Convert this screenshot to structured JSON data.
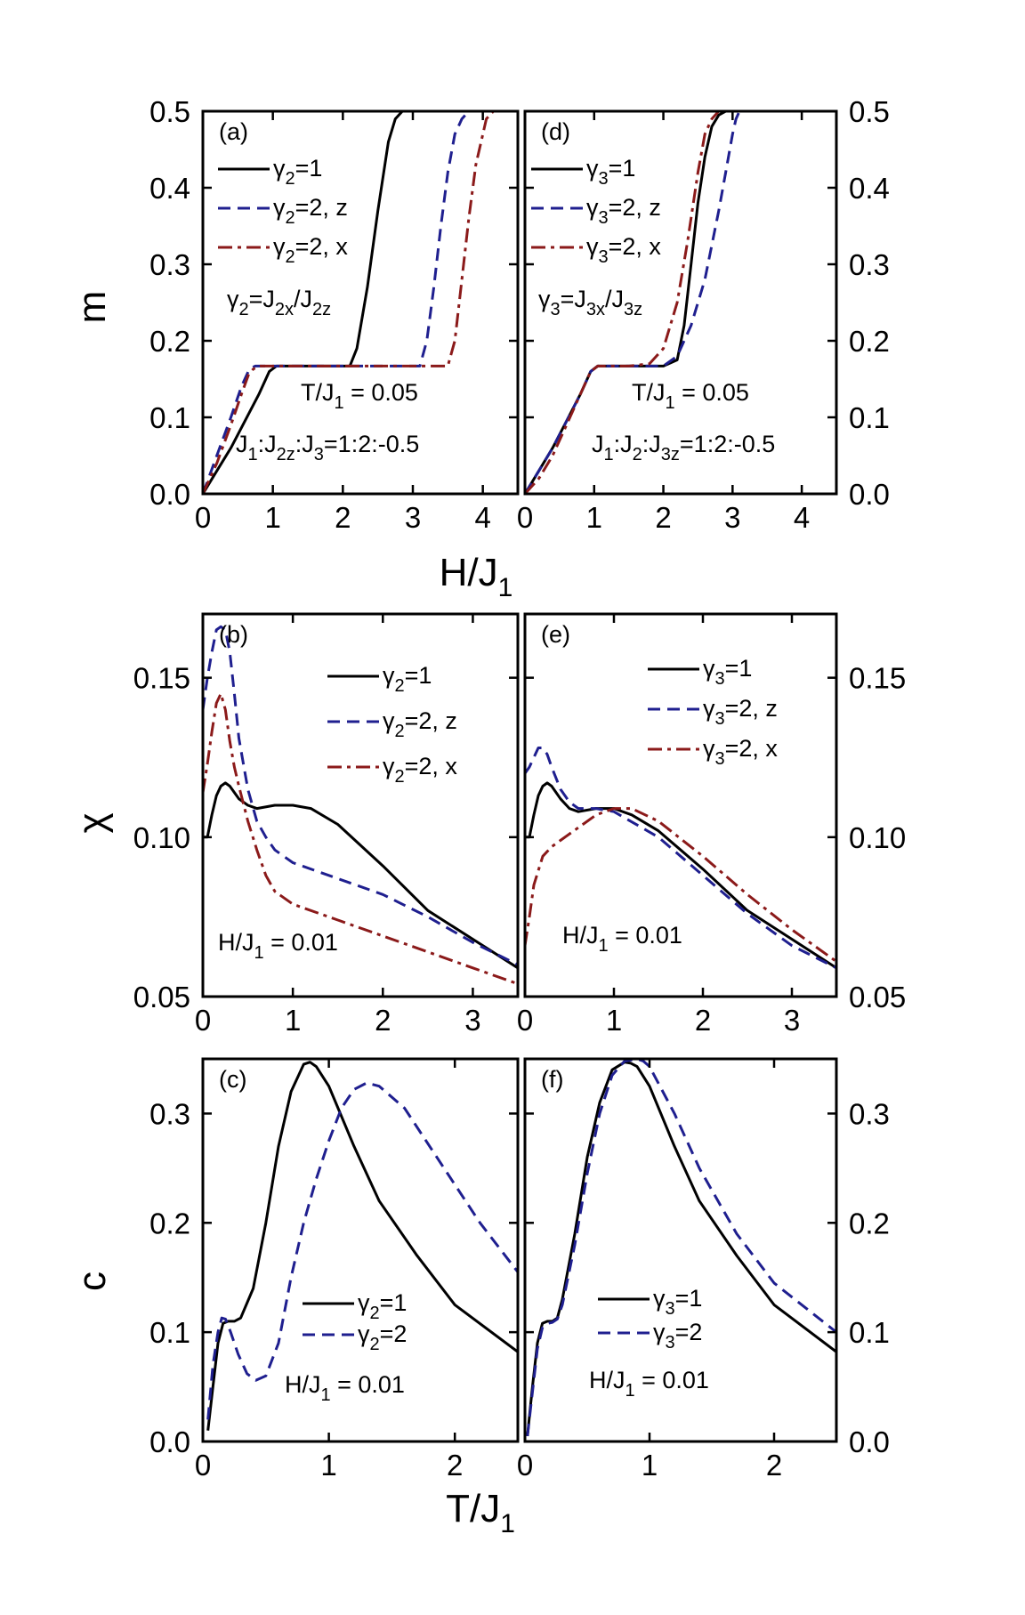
{
  "colors": {
    "black": "#000000",
    "blue": "#1f1f8f",
    "red": "#8b1a1a"
  },
  "axis_titles": {
    "m": "m",
    "chi": "χ",
    "c": "c",
    "top_x_main": "H/J",
    "top_x_sub": "1",
    "bottom_x_main": "T/J",
    "bottom_x_sub": "1"
  },
  "chart_data": [
    {
      "id": "a",
      "type": "line",
      "label": "(a)",
      "xlim": [
        0,
        4.5
      ],
      "ylim": [
        0,
        0.5
      ],
      "xticks": [
        "0",
        "1",
        "2",
        "3",
        "4"
      ],
      "yticks": [
        "0.0",
        "0.1",
        "0.2",
        "0.3",
        "0.4",
        "0.5"
      ],
      "legend": [
        {
          "main": "γ",
          "sub": "2",
          "rest": "=1"
        },
        {
          "main": "γ",
          "sub": "2",
          "rest": "=2, z"
        },
        {
          "main": "γ",
          "sub": "2",
          "rest": "=2, x"
        }
      ],
      "annotations": {
        "relation": {
          "p1": "γ",
          "s1": "2",
          "p2": "=J",
          "s2": "2x",
          "p3": "/J",
          "s3": "2z"
        },
        "temp": {
          "p1": "T/J",
          "s1": "1",
          "p2": " = 0.05"
        },
        "ratio": {
          "p1": "J",
          "s1": "1",
          "p2": ":J",
          "s2": "2z",
          "p3": ":J",
          "s3": "3",
          "p4": "=1:2:-0.5"
        }
      },
      "series": [
        {
          "style": "solid",
          "color": "black",
          "x": [
            0,
            0.2,
            0.4,
            0.6,
            0.8,
            0.95,
            1.05,
            1.3,
            1.8,
            2.1,
            2.2,
            2.35,
            2.5,
            2.65,
            2.75,
            2.85,
            3.1,
            3.4
          ],
          "y": [
            0,
            0.03,
            0.06,
            0.095,
            0.13,
            0.16,
            0.167,
            0.167,
            0.167,
            0.167,
            0.19,
            0.27,
            0.37,
            0.46,
            0.49,
            0.5,
            0.5,
            0.5
          ]
        },
        {
          "style": "dashed",
          "color": "blue",
          "x": [
            0,
            0.2,
            0.4,
            0.55,
            0.65,
            0.7,
            0.75,
            1.2,
            2.0,
            3.1,
            3.2,
            3.3,
            3.4,
            3.5,
            3.6,
            3.7,
            3.8,
            4.5
          ],
          "y": [
            0,
            0.05,
            0.1,
            0.14,
            0.16,
            0.165,
            0.167,
            0.167,
            0.167,
            0.167,
            0.2,
            0.27,
            0.35,
            0.42,
            0.47,
            0.49,
            0.5,
            0.5
          ]
        },
        {
          "style": "dashdot",
          "color": "red",
          "x": [
            0,
            0.2,
            0.4,
            0.55,
            0.65,
            0.72,
            0.8,
            1.5,
            2.5,
            3.5,
            3.6,
            3.7,
            3.8,
            3.9,
            4.0,
            4.05,
            4.15,
            4.5
          ],
          "y": [
            0,
            0.04,
            0.09,
            0.13,
            0.155,
            0.163,
            0.167,
            0.167,
            0.167,
            0.167,
            0.2,
            0.28,
            0.36,
            0.43,
            0.47,
            0.49,
            0.5,
            0.5
          ]
        }
      ]
    },
    {
      "id": "d",
      "type": "line",
      "label": "(d)",
      "xlim": [
        0,
        4.5
      ],
      "ylim": [
        0,
        0.5
      ],
      "xticks": [
        "0",
        "1",
        "2",
        "3",
        "4"
      ],
      "yticks": [
        "0.0",
        "0.1",
        "0.2",
        "0.3",
        "0.4",
        "0.5"
      ],
      "legend": [
        {
          "main": "γ",
          "sub": "3",
          "rest": "=1"
        },
        {
          "main": "γ",
          "sub": "3",
          "rest": "=2, z"
        },
        {
          "main": "γ",
          "sub": "3",
          "rest": "=2, x"
        }
      ],
      "annotations": {
        "relation": {
          "p1": "γ",
          "s1": "3",
          "p2": "=J",
          "s2": "3x",
          "p3": "/J",
          "s3": "3z"
        },
        "temp": {
          "p1": "T/J",
          "s1": "1",
          "p2": " = 0.05"
        },
        "ratio": {
          "p1": "J",
          "s1": "1",
          "p2": ":J",
          "s2": "2",
          "p3": ":J",
          "s3": "3z",
          "p4": "=1:2:-0.5"
        }
      },
      "series": [
        {
          "style": "solid",
          "color": "black",
          "x": [
            0,
            0.2,
            0.4,
            0.6,
            0.8,
            0.95,
            1.05,
            1.5,
            2.0,
            2.2,
            2.3,
            2.4,
            2.5,
            2.6,
            2.7,
            2.8,
            2.9,
            3.3
          ],
          "y": [
            0,
            0.03,
            0.06,
            0.095,
            0.13,
            0.16,
            0.167,
            0.167,
            0.167,
            0.175,
            0.22,
            0.3,
            0.38,
            0.44,
            0.48,
            0.495,
            0.5,
            0.5
          ]
        },
        {
          "style": "dashed",
          "color": "blue",
          "x": [
            0,
            0.2,
            0.4,
            0.6,
            0.8,
            0.95,
            1.05,
            1.5,
            2.0,
            2.2,
            2.4,
            2.6,
            2.8,
            2.9,
            3.0,
            3.05,
            3.1
          ],
          "y": [
            0,
            0.03,
            0.06,
            0.095,
            0.13,
            0.16,
            0.167,
            0.167,
            0.167,
            0.18,
            0.22,
            0.28,
            0.37,
            0.42,
            0.47,
            0.49,
            0.5
          ]
        },
        {
          "style": "dashdot",
          "color": "red",
          "x": [
            0,
            0.2,
            0.4,
            0.6,
            0.8,
            0.95,
            1.05,
            1.5,
            1.8,
            2.0,
            2.2,
            2.35,
            2.5,
            2.6,
            2.7,
            2.8,
            3.7
          ],
          "y": [
            0,
            0.02,
            0.05,
            0.09,
            0.13,
            0.16,
            0.167,
            0.167,
            0.17,
            0.19,
            0.25,
            0.33,
            0.42,
            0.47,
            0.49,
            0.5,
            0.5
          ]
        }
      ]
    },
    {
      "id": "b",
      "type": "line",
      "label": "(b)",
      "xlim": [
        0,
        3.5
      ],
      "ylim": [
        0.05,
        0.17
      ],
      "xticks": [
        "0",
        "1",
        "2",
        "3"
      ],
      "yticks": [
        "0.05",
        "0.10",
        "0.15"
      ],
      "legend": [
        {
          "main": "γ",
          "sub": "2",
          "rest": "=1"
        },
        {
          "main": "γ",
          "sub": "2",
          "rest": "=2, z"
        },
        {
          "main": "γ",
          "sub": "2",
          "rest": "=2, x"
        }
      ],
      "annotations": {
        "field": {
          "p1": "H/J",
          "s1": "1",
          "p2": " = 0.01"
        }
      },
      "series": [
        {
          "style": "solid",
          "color": "black",
          "x": [
            0,
            0.05,
            0.1,
            0.15,
            0.2,
            0.25,
            0.3,
            0.4,
            0.5,
            0.6,
            0.8,
            1.0,
            1.2,
            1.5,
            2.0,
            2.5,
            3.0,
            3.5
          ],
          "y": [
            0.1,
            0.1,
            0.107,
            0.113,
            0.116,
            0.117,
            0.116,
            0.112,
            0.11,
            0.109,
            0.11,
            0.11,
            0.109,
            0.104,
            0.091,
            0.077,
            0.068,
            0.059
          ]
        },
        {
          "style": "dashed",
          "color": "blue",
          "x": [
            0,
            0.05,
            0.1,
            0.15,
            0.2,
            0.25,
            0.3,
            0.35,
            0.4,
            0.5,
            0.6,
            0.7,
            0.8,
            1.0,
            1.5,
            2.0,
            2.5,
            3.0,
            3.5
          ],
          "y": [
            0.14,
            0.15,
            0.158,
            0.165,
            0.166,
            0.165,
            0.158,
            0.145,
            0.131,
            0.115,
            0.105,
            0.1,
            0.096,
            0.092,
            0.087,
            0.082,
            0.075,
            0.067,
            0.06
          ]
        },
        {
          "style": "dashdot",
          "color": "red",
          "x": [
            0,
            0.05,
            0.1,
            0.15,
            0.2,
            0.25,
            0.3,
            0.35,
            0.4,
            0.5,
            0.6,
            0.7,
            0.8,
            1.0,
            1.5,
            2.0,
            2.5,
            3.0,
            3.5
          ],
          "y": [
            0.114,
            0.123,
            0.133,
            0.142,
            0.145,
            0.14,
            0.13,
            0.122,
            0.116,
            0.105,
            0.096,
            0.088,
            0.083,
            0.079,
            0.074,
            0.069,
            0.064,
            0.059,
            0.054
          ]
        }
      ]
    },
    {
      "id": "e",
      "type": "line",
      "label": "(e)",
      "xlim": [
        0,
        3.5
      ],
      "ylim": [
        0.05,
        0.17
      ],
      "xticks": [
        "0",
        "1",
        "2",
        "3"
      ],
      "yticks": [
        "0.05",
        "0.10",
        "0.15"
      ],
      "legend": [
        {
          "main": "γ",
          "sub": "3",
          "rest": "=1"
        },
        {
          "main": "γ",
          "sub": "3",
          "rest": "=2, z"
        },
        {
          "main": "γ",
          "sub": "3",
          "rest": "=2, x"
        }
      ],
      "annotations": {
        "field": {
          "p1": "H/J",
          "s1": "1",
          "p2": " = 0.01"
        }
      },
      "series": [
        {
          "style": "solid",
          "color": "black",
          "x": [
            0,
            0.05,
            0.1,
            0.15,
            0.2,
            0.25,
            0.3,
            0.4,
            0.5,
            0.6,
            0.8,
            1.0,
            1.2,
            1.5,
            2.0,
            2.5,
            3.0,
            3.5
          ],
          "y": [
            0.1,
            0.1,
            0.107,
            0.113,
            0.116,
            0.117,
            0.116,
            0.112,
            0.109,
            0.108,
            0.109,
            0.109,
            0.107,
            0.102,
            0.09,
            0.077,
            0.068,
            0.059
          ]
        },
        {
          "style": "dashed",
          "color": "blue",
          "x": [
            0,
            0.05,
            0.1,
            0.15,
            0.2,
            0.25,
            0.3,
            0.4,
            0.5,
            0.6,
            0.8,
            1.0,
            1.5,
            2.0,
            2.5,
            3.0,
            3.5
          ],
          "y": [
            0.12,
            0.122,
            0.125,
            0.128,
            0.128,
            0.126,
            0.122,
            0.115,
            0.111,
            0.109,
            0.109,
            0.108,
            0.1,
            0.088,
            0.076,
            0.066,
            0.059
          ]
        },
        {
          "style": "dashdot",
          "color": "red",
          "x": [
            0,
            0.05,
            0.1,
            0.2,
            0.3,
            0.4,
            0.6,
            0.8,
            1.0,
            1.2,
            1.5,
            2.0,
            2.5,
            3.0,
            3.5
          ],
          "y": [
            0.066,
            0.075,
            0.085,
            0.094,
            0.097,
            0.099,
            0.103,
            0.107,
            0.109,
            0.109,
            0.105,
            0.094,
            0.082,
            0.071,
            0.061
          ]
        }
      ]
    },
    {
      "id": "c",
      "type": "line",
      "label": "(c)",
      "xlim": [
        0,
        2.5
      ],
      "ylim": [
        0,
        0.35
      ],
      "xticks": [
        "0",
        "1",
        "2"
      ],
      "yticks": [
        "0.0",
        "0.1",
        "0.2",
        "0.3"
      ],
      "legend": [
        {
          "main": "γ",
          "sub": "2",
          "rest": "=1"
        },
        {
          "main": "γ",
          "sub": "2",
          "rest": "=2"
        }
      ],
      "annotations": {
        "field": {
          "p1": "H/J",
          "s1": "1",
          "p2": " = 0.01"
        }
      },
      "series": [
        {
          "style": "solid",
          "color": "black",
          "x": [
            0.04,
            0.08,
            0.12,
            0.16,
            0.2,
            0.25,
            0.3,
            0.4,
            0.5,
            0.6,
            0.7,
            0.8,
            0.85,
            0.9,
            1.0,
            1.2,
            1.4,
            1.7,
            2.0,
            2.5
          ],
          "y": [
            0.01,
            0.05,
            0.09,
            0.108,
            0.11,
            0.11,
            0.113,
            0.14,
            0.2,
            0.27,
            0.32,
            0.345,
            0.347,
            0.343,
            0.325,
            0.27,
            0.22,
            0.17,
            0.125,
            0.082
          ]
        },
        {
          "style": "dashed",
          "color": "blue",
          "x": [
            0.04,
            0.08,
            0.12,
            0.15,
            0.18,
            0.22,
            0.28,
            0.35,
            0.42,
            0.5,
            0.6,
            0.7,
            0.8,
            0.9,
            1.0,
            1.1,
            1.2,
            1.3,
            1.4,
            1.6,
            1.8,
            2.0,
            2.2,
            2.5
          ],
          "y": [
            0.02,
            0.07,
            0.1,
            0.113,
            0.112,
            0.1,
            0.08,
            0.062,
            0.056,
            0.06,
            0.09,
            0.15,
            0.2,
            0.24,
            0.275,
            0.305,
            0.322,
            0.328,
            0.325,
            0.305,
            0.27,
            0.235,
            0.2,
            0.155
          ]
        }
      ]
    },
    {
      "id": "f",
      "type": "line",
      "label": "(f)",
      "xlim": [
        0,
        2.5
      ],
      "ylim": [
        0,
        0.35
      ],
      "xticks": [
        "0",
        "1",
        "2"
      ],
      "yticks": [
        "0.0",
        "0.1",
        "0.2",
        "0.3"
      ],
      "legend": [
        {
          "main": "γ",
          "sub": "3",
          "rest": "=1"
        },
        {
          "main": "γ",
          "sub": "3",
          "rest": "=2"
        }
      ],
      "annotations": {
        "field": {
          "p1": "H/J",
          "s1": "1",
          "p2": " = 0.01"
        }
      },
      "series": [
        {
          "style": "solid",
          "color": "black",
          "x": [
            0.02,
            0.06,
            0.1,
            0.14,
            0.18,
            0.22,
            0.26,
            0.3,
            0.4,
            0.5,
            0.6,
            0.7,
            0.8,
            0.85,
            0.9,
            1.0,
            1.2,
            1.4,
            1.7,
            2.0,
            2.5
          ],
          "y": [
            0.005,
            0.05,
            0.09,
            0.108,
            0.11,
            0.11,
            0.113,
            0.13,
            0.19,
            0.26,
            0.31,
            0.34,
            0.347,
            0.346,
            0.343,
            0.325,
            0.27,
            0.22,
            0.17,
            0.125,
            0.082
          ]
        },
        {
          "style": "dashed",
          "color": "blue",
          "x": [
            0.02,
            0.06,
            0.1,
            0.14,
            0.18,
            0.22,
            0.26,
            0.3,
            0.4,
            0.5,
            0.6,
            0.7,
            0.8,
            0.9,
            0.95,
            1.0,
            1.2,
            1.4,
            1.7,
            2.0,
            2.5
          ],
          "y": [
            0.005,
            0.045,
            0.085,
            0.104,
            0.108,
            0.109,
            0.112,
            0.125,
            0.18,
            0.245,
            0.3,
            0.335,
            0.348,
            0.35,
            0.348,
            0.343,
            0.3,
            0.25,
            0.19,
            0.145,
            0.1
          ]
        }
      ]
    }
  ]
}
